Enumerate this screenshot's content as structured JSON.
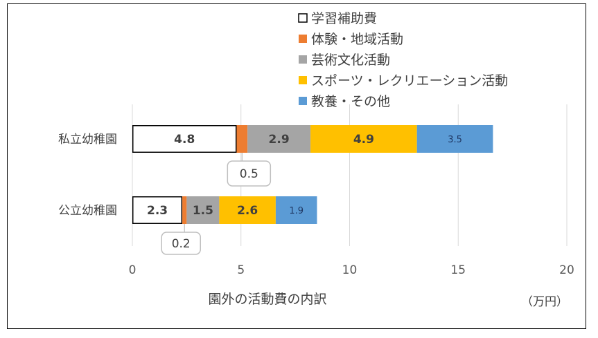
{
  "chart_data": {
    "type": "bar",
    "orientation": "horizontal",
    "stacked": true,
    "categories": [
      "私立幼稚園",
      "公立幼稚園"
    ],
    "series": [
      {
        "name": "学習補助費",
        "values": [
          4.8,
          2.3
        ],
        "color": "#ffffff",
        "stroke": "#000000"
      },
      {
        "name": "体験・地域活動",
        "values": [
          0.5,
          0.2
        ],
        "color": "#ED7D31"
      },
      {
        "name": "芸術文化活動",
        "values": [
          2.9,
          1.5
        ],
        "color": "#A5A5A5"
      },
      {
        "name": "スポーツ・レクリエーション活動",
        "values": [
          4.9,
          2.6
        ],
        "color": "#FFC000"
      },
      {
        "name": "教養・その他",
        "values": [
          3.5,
          1.9
        ],
        "color": "#5B9BD5"
      }
    ],
    "value_labels": [
      [
        "4.8",
        "0.5",
        "2.9",
        "4.9",
        "3.5"
      ],
      [
        "2.3",
        "0.2",
        "1.5",
        "2.6",
        "1.9"
      ]
    ],
    "xlim": [
      0,
      20
    ],
    "xticks": [
      "0",
      "5",
      "10",
      "15",
      "20"
    ],
    "xlabel": "園外の活動費の内訳",
    "unit": "（万円）",
    "grid": true,
    "legend_position": "top-right"
  }
}
